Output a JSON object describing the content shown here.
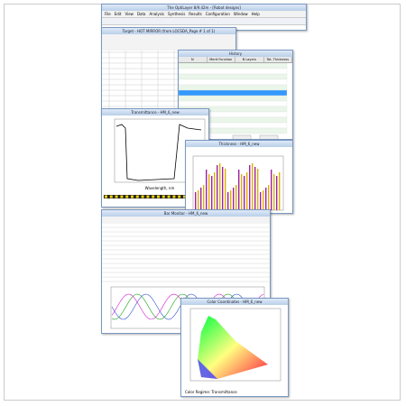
{
  "app": {
    "title": "The OptiLayer 8/9.42m - [Robot designs]",
    "menu": [
      "File",
      "Edit",
      "View",
      "Data",
      "Analysis",
      "Synthesis",
      "Results",
      "Configuration",
      "Window",
      "Help"
    ]
  },
  "windows": [
    {
      "title": "Target - HOT MIRROR (from LOCSDA_Page # 1 of 1)"
    },
    {
      "title": "History"
    },
    {
      "title": "Transmittance - HM_6_new"
    },
    {
      "title": "Thickness - HM_6_new"
    },
    {
      "title": "Bar Monitor - HM_6_new"
    },
    {
      "title": "Color Coordinates - HM_6_new"
    }
  ],
  "history": {
    "header": [
      "N",
      "Merit Function",
      "N Layers",
      "Tot. Thickness"
    ]
  },
  "transmittance": {
    "x_label": "Wavelength, nm"
  },
  "color": {
    "footer": "Color Regime: Transmittance"
  }
}
